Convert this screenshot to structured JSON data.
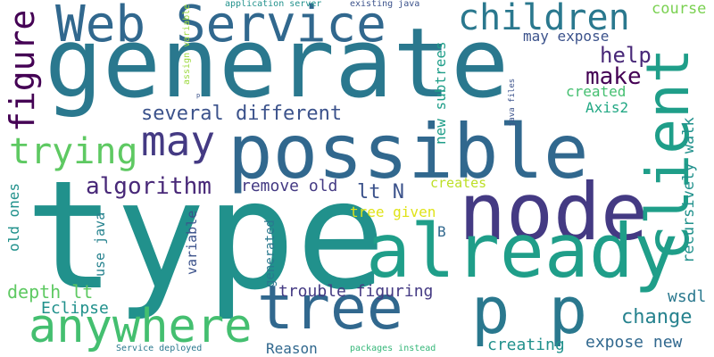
{
  "words": {
    "type": "type",
    "generate": "generate",
    "possible": "possible",
    "node": "node",
    "already": "already",
    "tree": "tree",
    "p_p": "p p",
    "client": "client",
    "web_service": "Web Service",
    "anywhere": "anywhere",
    "children": "children",
    "may": "may",
    "trying": "trying",
    "figure": "figure",
    "algorithm": "algorithm",
    "several_different": "several different",
    "make": "make",
    "help": "help",
    "remove_old": "remove old",
    "lt_n": "lt N",
    "change": "change",
    "expose_new": "expose new",
    "trouble_figuring": "trouble figuring",
    "depth_lt": "depth lt",
    "eclipse": "Eclipse",
    "reason": "Reason",
    "creating": "creating",
    "wsdl": "wsdl",
    "recursively_walk": "recursively walk",
    "course": "course",
    "may_expose": "may expose",
    "created": "created",
    "axis2": "Axis2",
    "new_subtrees": "new subtrees",
    "creates": "creates",
    "tree_given": "tree given",
    "b": "B",
    "old_ones": "old ones",
    "use_java": "use java",
    "variable": "variable",
    "generated": "generated",
    "application_server": "application server",
    "existing_java": "existing java",
    "assign_variable": "assign variable",
    "java_files": "java files",
    "p": "p",
    "service_deployed": "Service deployed",
    "packages_instead": "packages instead"
  }
}
